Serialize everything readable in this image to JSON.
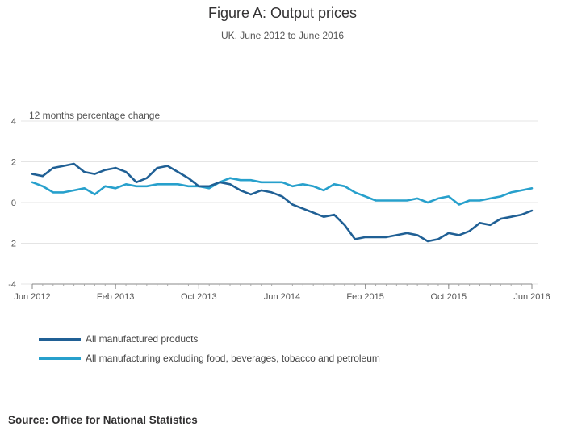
{
  "chart_data": {
    "type": "line",
    "title": "Figure A: Output prices",
    "subtitle": "UK, June 2012 to June 2016",
    "ylabel": "12 months percentage change",
    "ylim": [
      -4,
      4
    ],
    "yticks": [
      4,
      2,
      0,
      -2,
      -4
    ],
    "xticks": [
      {
        "index": 0,
        "label": "Jun 2012"
      },
      {
        "index": 8,
        "label": "Feb 2013"
      },
      {
        "index": 16,
        "label": "Oct 2013"
      },
      {
        "index": 24,
        "label": "Jun 2014"
      },
      {
        "index": 32,
        "label": "Feb 2015"
      },
      {
        "index": 40,
        "label": "Oct 2015"
      },
      {
        "index": 48,
        "label": "Jun 2016"
      }
    ],
    "grid": true,
    "legend_position": "bottom-left",
    "series": [
      {
        "name": "All manufactured products",
        "color": "#206095",
        "values": [
          1.4,
          1.3,
          1.7,
          1.8,
          1.9,
          1.5,
          1.4,
          1.6,
          1.7,
          1.5,
          1.0,
          1.2,
          1.7,
          1.8,
          1.5,
          1.2,
          0.8,
          0.8,
          1.0,
          0.9,
          0.6,
          0.4,
          0.6,
          0.5,
          0.3,
          -0.1,
          -0.3,
          -0.5,
          -0.7,
          -0.6,
          -1.1,
          -1.8,
          -1.7,
          -1.7,
          -1.7,
          -1.6,
          -1.5,
          -1.6,
          -1.9,
          -1.8,
          -1.5,
          -1.6,
          -1.4,
          -1.0,
          -1.1,
          -0.8,
          -0.7,
          -0.6,
          -0.4
        ]
      },
      {
        "name": "All manufacturing excluding food, beverages, tobacco and petroleum",
        "color": "#27a0cc",
        "values": [
          1.0,
          0.8,
          0.5,
          0.5,
          0.6,
          0.7,
          0.4,
          0.8,
          0.7,
          0.9,
          0.8,
          0.8,
          0.9,
          0.9,
          0.9,
          0.8,
          0.8,
          0.7,
          1.0,
          1.2,
          1.1,
          1.1,
          1.0,
          1.0,
          1.0,
          0.8,
          0.9,
          0.8,
          0.6,
          0.9,
          0.8,
          0.5,
          0.3,
          0.1,
          0.1,
          0.1,
          0.1,
          0.2,
          0.0,
          0.2,
          0.3,
          -0.1,
          0.1,
          0.1,
          0.2,
          0.3,
          0.5,
          0.6,
          0.7
        ]
      }
    ]
  },
  "source": "Source: Office for National Statistics"
}
